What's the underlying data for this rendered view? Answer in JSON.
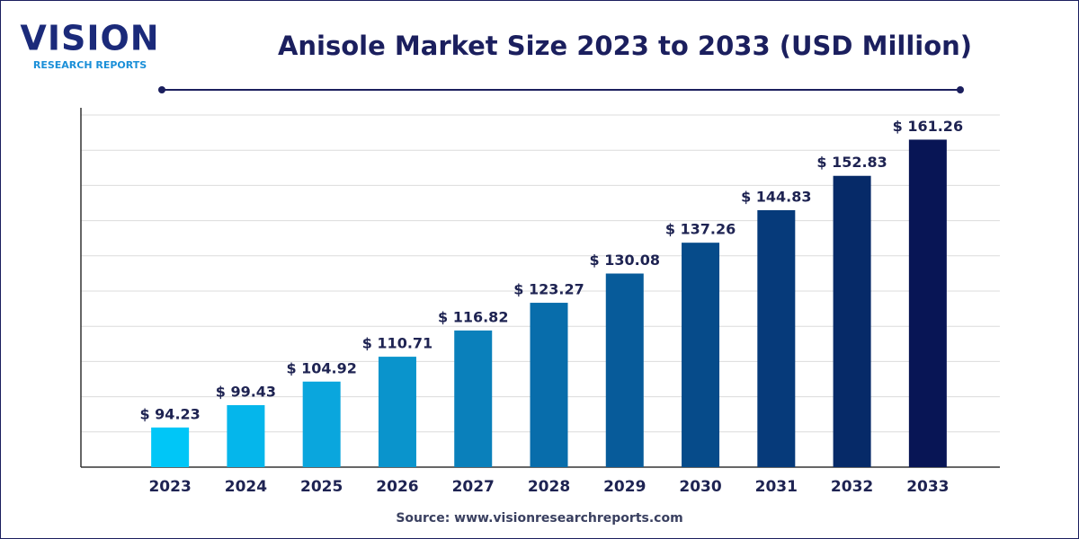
{
  "header": {
    "logo_main": "VISION",
    "logo_sub": "RESEARCH REPORTS"
  },
  "chart_data": {
    "type": "bar",
    "title": "Anisole Market Size 2023 to 2033 (USD Million)",
    "categories": [
      "2023",
      "2024",
      "2025",
      "2026",
      "2027",
      "2028",
      "2029",
      "2030",
      "2031",
      "2032",
      "2033"
    ],
    "values": [
      94.23,
      99.43,
      104.92,
      110.71,
      116.82,
      123.27,
      130.08,
      137.26,
      144.83,
      152.83,
      161.26
    ],
    "value_labels": [
      "$ 94.23",
      "$ 99.43",
      "$ 104.92",
      "$ 110.71",
      "$ 116.82",
      "$ 123.27",
      "$ 130.08",
      "$ 137.26",
      "$ 144.83",
      "$ 152.83",
      "$ 161.26"
    ],
    "colors": [
      "#00c6f7",
      "#05b6eb",
      "#0aa6dd",
      "#0a94cc",
      "#0a80bb",
      "#086dab",
      "#075b9a",
      "#064b8a",
      "#063a7a",
      "#062a68",
      "#081555"
    ],
    "ylim": [
      85,
      167
    ],
    "grid": true
  },
  "footer": {
    "source": "Source: www.visionresearchreports.com"
  }
}
